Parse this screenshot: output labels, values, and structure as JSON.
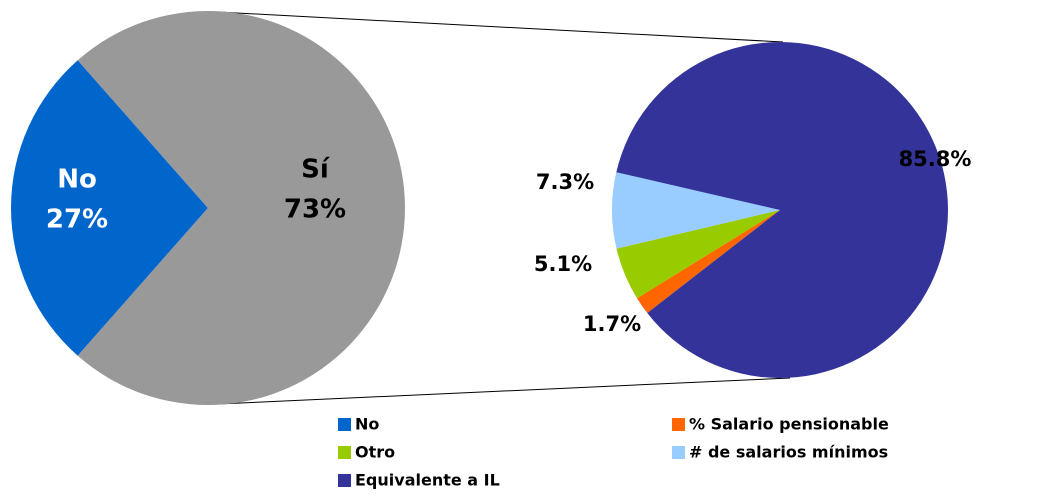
{
  "chart_data": [
    {
      "type": "pie",
      "categories": [
        "No",
        "Sí"
      ],
      "values": [
        27,
        73
      ],
      "value_labels": [
        "27%",
        "73%"
      ],
      "colors": [
        "#0066cc",
        "#999999"
      ]
    },
    {
      "type": "pie",
      "categories": [
        "% Salario pensionable",
        "Otro",
        "# de salarios mínimos",
        "Equivalente a IL"
      ],
      "values": [
        1.7,
        5.1,
        7.3,
        85.8
      ],
      "value_labels": [
        "1.7%",
        "5.1%",
        "7.3%",
        "85.8%"
      ],
      "colors": [
        "#ff6600",
        "#99cc00",
        "#99ccff",
        "#333399"
      ]
    }
  ]
}
